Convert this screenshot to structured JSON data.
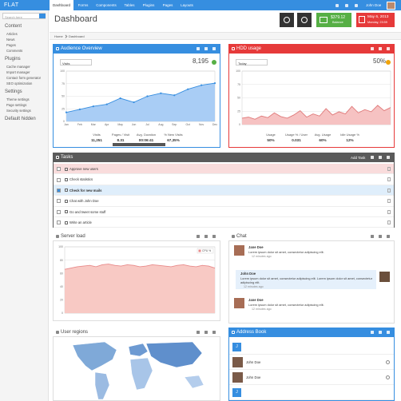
{
  "nav": {
    "brand": "FLAT",
    "items": [
      "Dashboard",
      "Forms",
      "Components",
      "Tables",
      "Plugins",
      "Pages",
      "Layouts"
    ],
    "user": "John Doe"
  },
  "sidebar": {
    "search_placeholder": "Search here",
    "sections": [
      {
        "title": "Content",
        "items": [
          "Articles",
          "News",
          "Pages",
          "Comments"
        ]
      },
      {
        "title": "Plugins",
        "items": [
          "Cache manager",
          "Import manager",
          "Contact form generator",
          "SEO optimization"
        ]
      },
      {
        "title": "Settings",
        "items": [
          "Theme settings",
          "Page settings",
          "Security settings"
        ]
      },
      {
        "title": "Default hidden",
        "items": []
      }
    ]
  },
  "header": {
    "title": "Dashboard",
    "balance": {
      "value": "$379.12",
      "label": "Balance"
    },
    "date": {
      "date": "May 6, 2013",
      "time": "Monday, 23:59"
    }
  },
  "breadcrumb": [
    "Home",
    "Dashboard"
  ],
  "audience": {
    "title": "Audience Overview",
    "select": "Visits",
    "total": "8,195",
    "chart": {
      "type": "line",
      "categories": [
        "Jan",
        "Feb",
        "Mar",
        "Apr",
        "May",
        "Jun",
        "Jul",
        "Aug",
        "Sep",
        "Oct",
        "Nov",
        "Dec"
      ],
      "values": [
        18,
        24,
        30,
        34,
        46,
        38,
        50,
        56,
        52,
        64,
        72,
        76
      ],
      "ylim": [
        0,
        100
      ],
      "yticks": [
        0,
        25,
        50,
        75,
        100
      ],
      "color": "#368ee0",
      "fill": "#a9cdf5",
      "dots": true
    },
    "stats": [
      {
        "label": "Visits",
        "value": "11,251"
      },
      {
        "label": "Pages / Visit",
        "value": "8.31"
      },
      {
        "label": "Avg. Duration",
        "value": "00:06:41"
      },
      {
        "label": "% New Visits",
        "value": "67,35%"
      }
    ]
  },
  "hdd": {
    "title": "HDD usage",
    "select": "Today",
    "total": "50%",
    "chart": {
      "type": "line",
      "values": [
        12,
        14,
        10,
        16,
        13,
        22,
        15,
        12,
        18,
        26,
        14,
        20,
        16,
        30,
        18,
        24,
        20,
        34,
        22,
        28,
        24,
        36,
        26,
        32
      ],
      "ylim": [
        0,
        100
      ],
      "yticks": [
        0,
        25,
        50,
        75,
        100
      ],
      "color": "#e07a7a",
      "fill": "#f6c2c2",
      "dots": false
    },
    "stats": [
      {
        "label": "Usage",
        "value": "50%"
      },
      {
        "label": "Usage % / User",
        "value": "0.031"
      },
      {
        "label": "Avg. Usage",
        "value": "60%"
      },
      {
        "label": "Idle Usage %",
        "value": "12%"
      }
    ]
  },
  "tasks": {
    "title": "Tasks",
    "add": "Add Task",
    "items": [
      "Approve new users",
      "Check statistics",
      "Check for new mails",
      "Chat with John Doe",
      "Go and tweet some stuff",
      "Write an article"
    ]
  },
  "server_load": {
    "title": "Server load",
    "chart": {
      "type": "area",
      "values": [
        66,
        68,
        70,
        71,
        72,
        70,
        73,
        74,
        72,
        71,
        73,
        72,
        70,
        71,
        73,
        72,
        71,
        70,
        72,
        73,
        71,
        70,
        72,
        71,
        68
      ],
      "ylim": [
        0,
        100
      ],
      "yticks": [
        0,
        20,
        40,
        60,
        80,
        100
      ],
      "color": "#e88a8a",
      "fill": "#f8c9c4",
      "dots": false,
      "legend": "CPU %"
    }
  },
  "chat": {
    "title": "Chat",
    "messages": [
      {
        "name": "Jane Doe",
        "text": "Lorem ipsum dolor sit amet, consectetur adipiscing elit.",
        "time": "12 minutes ago"
      },
      {
        "name": "John Doe",
        "text": "Lorem ipsum dolor sit amet, consectetur adipiscing elit. Lorem ipsum dolor sit amet, consectetur adipiscing elit.",
        "time": "12 minutes ago"
      },
      {
        "name": "Jane Doe",
        "text": "Lorem ipsum dolor sit amet, consectetur adipiscing elit.",
        "time": "12 minutes ago"
      }
    ]
  },
  "regions": {
    "title": "User regions"
  },
  "address_book": {
    "title": "Address Book",
    "entries": [
      {
        "letter": "J"
      },
      {
        "name": "John Doe"
      },
      {
        "name": "John Doe"
      },
      {
        "letter": "J"
      }
    ]
  }
}
